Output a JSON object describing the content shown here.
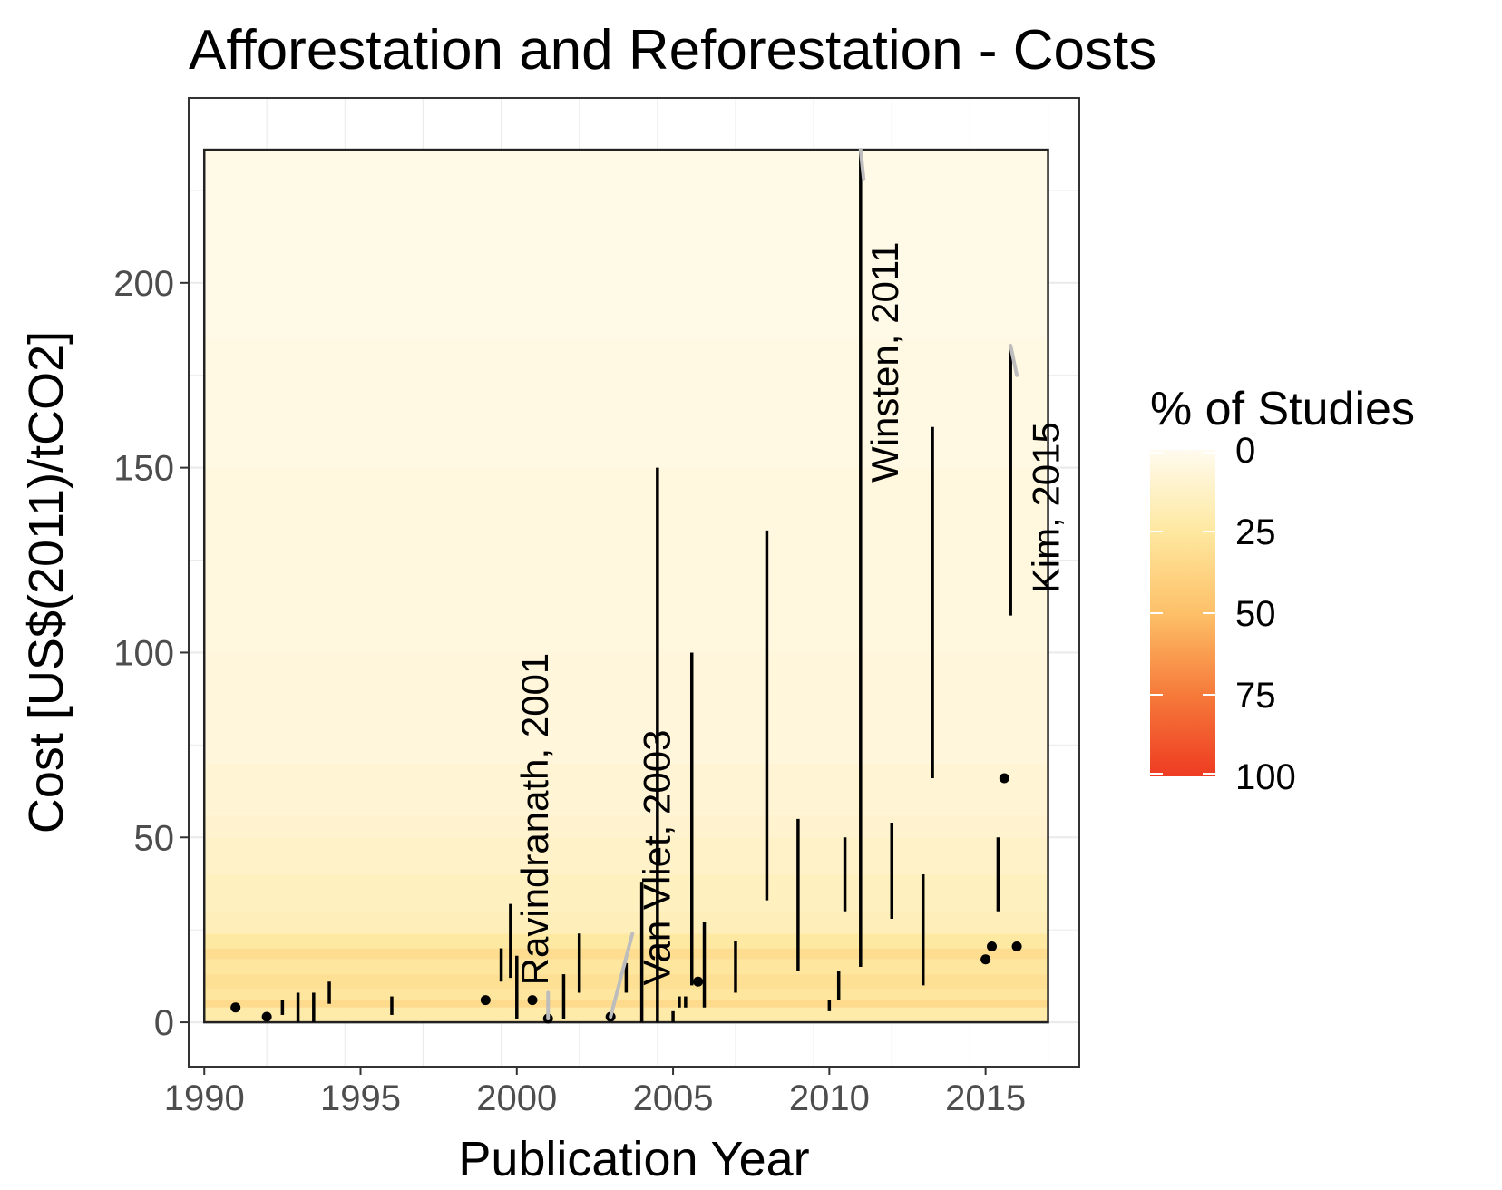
{
  "chart_data": {
    "type": "range-scatter",
    "title": "Afforestation and Reforestation - Costs",
    "xlabel": "Publication Year",
    "ylabel": "Cost [US$(2011)/tCO2]",
    "xlim": [
      1989.5,
      2018
    ],
    "ylim": [
      -12,
      250
    ],
    "x_ticks": [
      1990,
      1995,
      2000,
      2005,
      2010,
      2015
    ],
    "y_ticks": [
      0,
      50,
      100,
      150,
      200
    ],
    "grid": true,
    "background_band": {
      "x": [
        1990,
        2017
      ],
      "y": [
        0,
        236
      ]
    },
    "density_bands": [
      {
        "y": [
          0,
          4
        ],
        "pct": 22
      },
      {
        "y": [
          4,
          6
        ],
        "pct": 34
      },
      {
        "y": [
          6,
          9
        ],
        "pct": 26
      },
      {
        "y": [
          9,
          13
        ],
        "pct": 30
      },
      {
        "y": [
          13,
          17
        ],
        "pct": 26
      },
      {
        "y": [
          17,
          20
        ],
        "pct": 32
      },
      {
        "y": [
          20,
          24
        ],
        "pct": 24
      },
      {
        "y": [
          24,
          30
        ],
        "pct": 17
      },
      {
        "y": [
          30,
          40
        ],
        "pct": 15
      },
      {
        "y": [
          40,
          50
        ],
        "pct": 12
      },
      {
        "y": [
          50,
          56
        ],
        "pct": 10
      },
      {
        "y": [
          56,
          70
        ],
        "pct": 8
      },
      {
        "y": [
          70,
          100
        ],
        "pct": 6
      },
      {
        "y": [
          100,
          150
        ],
        "pct": 5
      },
      {
        "y": [
          150,
          185
        ],
        "pct": 4
      },
      {
        "y": [
          185,
          236
        ],
        "pct": 2
      }
    ],
    "ranges": [
      {
        "x": 1992.5,
        "y": [
          2,
          6
        ]
      },
      {
        "x": 1993.0,
        "y": [
          0,
          8
        ]
      },
      {
        "x": 1993.5,
        "y": [
          0,
          8
        ]
      },
      {
        "x": 1994.0,
        "y": [
          5,
          11
        ]
      },
      {
        "x": 1996.0,
        "y": [
          2,
          7
        ]
      },
      {
        "x": 1999.5,
        "y": [
          11,
          20
        ]
      },
      {
        "x": 1999.8,
        "y": [
          12,
          32
        ]
      },
      {
        "x": 2000.0,
        "y": [
          1,
          18
        ]
      },
      {
        "x": 2001.5,
        "y": [
          1,
          13
        ]
      },
      {
        "x": 2002.0,
        "y": [
          8,
          24
        ]
      },
      {
        "x": 2003.5,
        "y": [
          8,
          16
        ]
      },
      {
        "x": 2004.0,
        "y": [
          0,
          38
        ]
      },
      {
        "x": 2004.5,
        "y": [
          0,
          150
        ]
      },
      {
        "x": 2005.0,
        "y": [
          0,
          3
        ]
      },
      {
        "x": 2005.2,
        "y": [
          4,
          7
        ]
      },
      {
        "x": 2005.4,
        "y": [
          4,
          7
        ]
      },
      {
        "x": 2005.6,
        "y": [
          10,
          100
        ]
      },
      {
        "x": 2006.0,
        "y": [
          4,
          27
        ]
      },
      {
        "x": 2007.0,
        "y": [
          8,
          22
        ]
      },
      {
        "x": 2008.0,
        "y": [
          33,
          133
        ]
      },
      {
        "x": 2009.0,
        "y": [
          14,
          55
        ]
      },
      {
        "x": 2010.0,
        "y": [
          3,
          6
        ]
      },
      {
        "x": 2010.3,
        "y": [
          6,
          14
        ]
      },
      {
        "x": 2010.5,
        "y": [
          30,
          50
        ]
      },
      {
        "x": 2011.0,
        "y": [
          15,
          236
        ]
      },
      {
        "x": 2012.0,
        "y": [
          28,
          54
        ]
      },
      {
        "x": 2013.0,
        "y": [
          10,
          40
        ]
      },
      {
        "x": 2013.3,
        "y": [
          66,
          161
        ]
      },
      {
        "x": 2015.4,
        "y": [
          30,
          50
        ]
      },
      {
        "x": 2015.8,
        "y": [
          110,
          183
        ]
      }
    ],
    "points": [
      {
        "x": 1991.0,
        "y": 4
      },
      {
        "x": 1992.0,
        "y": 1.5
      },
      {
        "x": 1999.0,
        "y": 6
      },
      {
        "x": 2000.5,
        "y": 6
      },
      {
        "x": 2001.0,
        "y": 1
      },
      {
        "x": 2003.0,
        "y": 1.5
      },
      {
        "x": 2005.8,
        "y": 11
      },
      {
        "x": 2015.0,
        "y": 17
      },
      {
        "x": 2015.2,
        "y": 20.5
      },
      {
        "x": 2015.6,
        "y": 66
      },
      {
        "x": 2016.0,
        "y": 20.5
      }
    ],
    "annotations": [
      {
        "text": "Ravindranath, 2001",
        "x": 2001.0,
        "y": 10,
        "line": [
          [
            2001.0,
            1
          ],
          [
            2001.0,
            8
          ]
        ]
      },
      {
        "text": "Van Vliet, 2003",
        "x": 2004.9,
        "y": 10,
        "line": [
          [
            2003.0,
            1.5
          ],
          [
            2003.7,
            24
          ]
        ]
      },
      {
        "text": "Winsten, 2011",
        "x": 2012.2,
        "y": 146,
        "line": [
          [
            2011.0,
            236
          ],
          [
            2011.1,
            228
          ]
        ]
      },
      {
        "text": "Kim, 2015",
        "x": 2017.35,
        "y": 116,
        "line": [
          [
            2015.8,
            183
          ],
          [
            2016.0,
            175
          ]
        ]
      }
    ],
    "legend": {
      "title": "% of Studies",
      "position": "right",
      "labels": [
        "0",
        "25",
        "50",
        "75",
        "100"
      ],
      "values": [
        0,
        25,
        50,
        75,
        100
      ],
      "colors": [
        "#fffbee",
        "#fee8a0",
        "#fdc068",
        "#f67a3a",
        "#ee3b22"
      ]
    }
  }
}
